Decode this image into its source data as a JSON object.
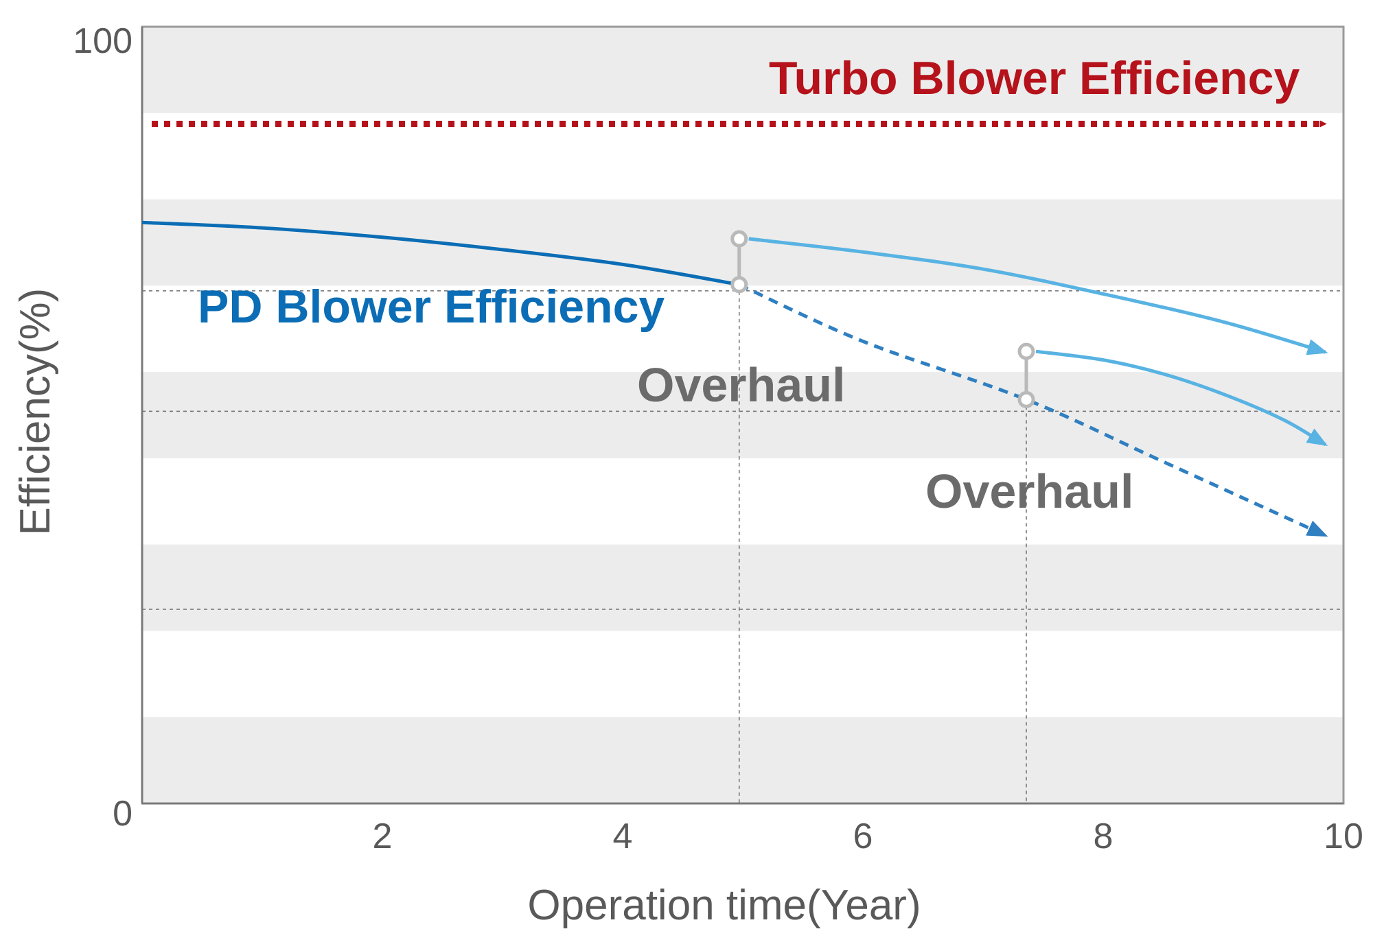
{
  "chart_data": {
    "type": "line",
    "xlabel": "Operation time(Year)",
    "ylabel": "Efficiency(%)",
    "xlim": [
      0,
      10
    ],
    "ylim": [
      0,
      100
    ],
    "x_ticks": [
      "2",
      "4",
      "6",
      "8",
      "10"
    ],
    "y_ticks": [
      "0",
      "100"
    ],
    "reference_y": [
      25,
      50.5,
      66
    ],
    "bands": "alternating light gray horizontal stripes",
    "series": [
      {
        "name": "Turbo Blower Efficiency",
        "color": "#b5121b",
        "style": "dotted-arrow",
        "x": [
          0.08,
          9.85
        ],
        "y": [
          87.5,
          87.5
        ]
      },
      {
        "name": "PD Blower Efficiency",
        "color": "#0b6db5",
        "style": "solid",
        "x": [
          0,
          1,
          2,
          3,
          4,
          4.97
        ],
        "y": [
          74.8,
          74.1,
          72.9,
          71.3,
          69.4,
          66.8
        ]
      },
      {
        "name": "",
        "color": "#2f7fc1",
        "style": "dashed-arrow",
        "x": [
          4.97,
          6,
          7.36,
          8.5,
          9.85
        ],
        "y": [
          66.8,
          59.5,
          52,
          44,
          34.5
        ]
      },
      {
        "name": "",
        "color": "#58b3e3",
        "style": "solid-arrow",
        "x": [
          5.05,
          6,
          7,
          8,
          9,
          9.85
        ],
        "y": [
          72.7,
          71,
          68.8,
          65.6,
          62,
          58.1
        ]
      },
      {
        "name": "",
        "color": "#58b3e3",
        "style": "solid-arrow",
        "x": [
          7.44,
          8,
          8.5,
          9,
          9.5,
          9.85
        ],
        "y": [
          58.2,
          57.1,
          55.3,
          52.7,
          49.4,
          46.2
        ]
      }
    ],
    "overhaul_events": [
      {
        "x": 4.97,
        "y_from": 66.8,
        "y_to": 72.7,
        "label": "Overhaul"
      },
      {
        "x": 7.36,
        "y_from": 52,
        "y_to": 58.2,
        "label": "Overhaul"
      }
    ]
  }
}
